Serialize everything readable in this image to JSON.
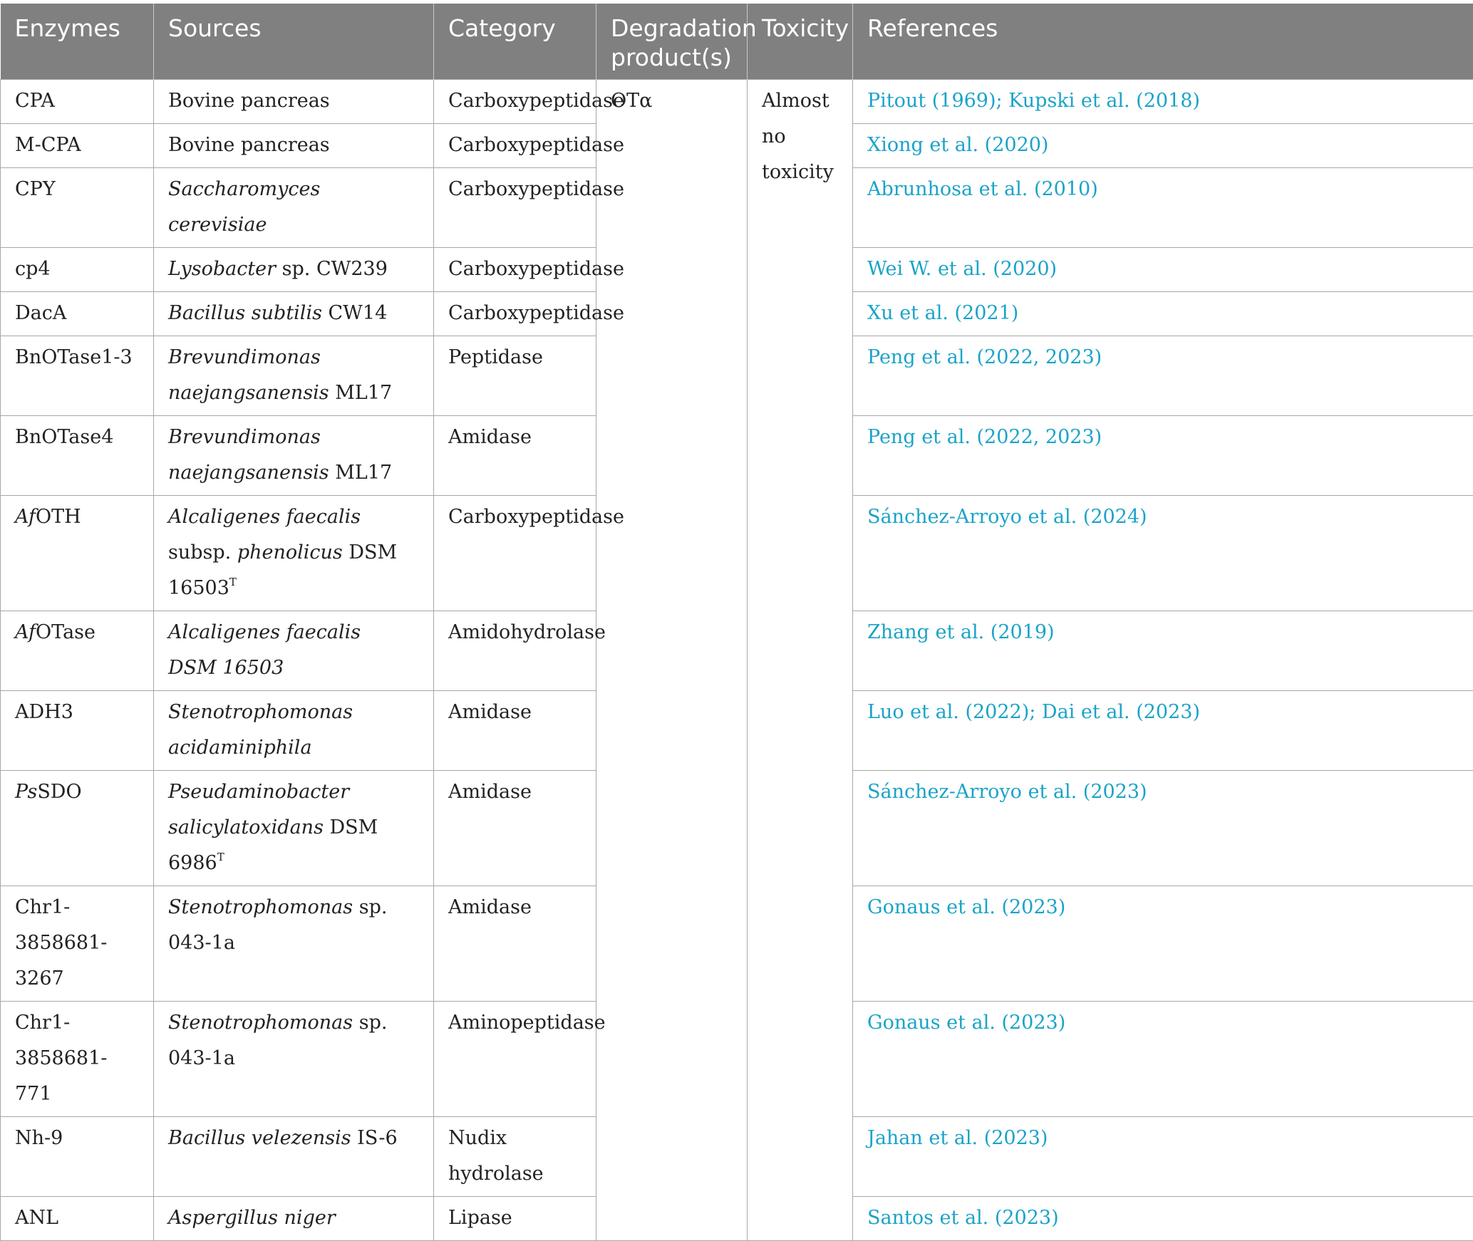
{
  "table": {
    "headers": {
      "enzymes": "Enzymes",
      "sources": "Sources",
      "category": "Category",
      "degradation": "Degradation product(s)",
      "toxicity": "Toxicity",
      "references": "References"
    },
    "shared": {
      "degradation_product": "OTα",
      "toxicity": "Almost no toxicity"
    },
    "rows": [
      {
        "enzyme": "CPA",
        "source": "Bovine pancreas",
        "category": "Carboxypeptidase",
        "references": "Pitout (1969); Kupski et al. (2018)"
      },
      {
        "enzyme": "M-CPA",
        "source": "Bovine pancreas",
        "category": "Carboxypeptidase",
        "references": "Xiong et al. (2020)"
      },
      {
        "enzyme": "CPY",
        "source_italic": "Saccharomyces cerevisiae",
        "category": "Carboxypeptidase",
        "references": "Abrunhosa et al. (2010)"
      },
      {
        "enzyme": "cp4",
        "source_italic": "Lysobacter",
        "source_rest": " sp. CW239",
        "category": "Carboxypeptidase",
        "references": "Wei W. et al. (2020)"
      },
      {
        "enzyme": "DacA",
        "source_italic": "Bacillus subtilis",
        "source_rest": " CW14",
        "category": "Carboxypeptidase",
        "references": "Xu et al. (2021)"
      },
      {
        "enzyme": "BnOTase1-3",
        "source_italic": "Brevundimonas naejangsanensis",
        "source_rest": " ML17",
        "category": "Peptidase",
        "references": "Peng et al. (2022, 2023)"
      },
      {
        "enzyme": "BnOTase4",
        "source_italic": "Brevundimonas naejangsanensis",
        "source_rest": " ML17",
        "category": "Amidase",
        "references": "Peng et al. (2022, 2023)"
      },
      {
        "enzyme_italic": "Af",
        "enzyme_rest": "OTH",
        "source_italic": "Alcaligenes faecalis",
        "source_mid": " subsp. ",
        "source_italic2": "phenolicus",
        "source_rest": " DSM 16503",
        "source_sup": "T",
        "category": "Carboxypeptidase",
        "references": "Sánchez-Arroyo et al. (2024)"
      },
      {
        "enzyme_italic": "Af",
        "enzyme_rest": "OTase",
        "source_italic": "Alcaligenes faecalis DSM 16503",
        "category": "Amidohydrolase",
        "references": "Zhang et al. (2019)"
      },
      {
        "enzyme": "ADH3",
        "source_italic": "Stenotrophomonas acidaminiphila",
        "category": "Amidase",
        "references": "Luo et al. (2022); Dai et al. (2023)"
      },
      {
        "enzyme_italic": "Ps",
        "enzyme_rest": "SDO",
        "source_italic": "Pseudaminobacter salicylatoxidans",
        "source_rest": " DSM 6986",
        "source_sup": "T",
        "category": "Amidase",
        "references": "Sánchez-Arroyo et al. (2023)"
      },
      {
        "enzyme": "Chr1-3858681-3267",
        "source_italic": "Stenotrophomonas",
        "source_rest": " sp. 043-1a",
        "category": "Amidase",
        "references": "Gonaus et al. (2023)"
      },
      {
        "enzyme": "Chr1-3858681-771",
        "source_italic": "Stenotrophomonas",
        "source_rest": " sp. 043-1a",
        "category": "Aminopeptidase",
        "references": "Gonaus et al. (2023)"
      },
      {
        "enzyme": "Nh-9",
        "source_italic": "Bacillus velezensis",
        "source_rest": " IS-6",
        "category": "Nudix hydrolase",
        "references": "Jahan et al. (2023)"
      },
      {
        "enzyme": "ANL",
        "source_italic": "Aspergillus niger",
        "category": "Lipase",
        "references": "Santos et al. (2023)"
      }
    ]
  }
}
